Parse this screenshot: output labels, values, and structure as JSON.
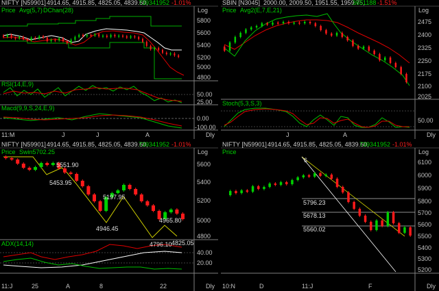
{
  "colors": {
    "bg": "#000000",
    "green": "#00c000",
    "red": "#e00000",
    "white": "#ffffff",
    "grid": "#808080",
    "yellow": "#c0c000",
    "text_green": "#00d000",
    "text_red": "#ff2020",
    "label": "#c0c0c0"
  },
  "panels": {
    "tl": {
      "header": {
        "symbol": "NIFTY [N59901]",
        "ohlc": "4914.65, 4915.85, 4825.05, 4839.60,",
        "volume": "739341952",
        "change": "-1.01%",
        "scale": "Log"
      },
      "indicator_labels": [
        "Price",
        "Avg(5,7)",
        "DChan(28)"
      ],
      "price_ticks": [
        "5800",
        "5600",
        "5400",
        "5200",
        "5000",
        "4800"
      ],
      "rsi": {
        "label": "RSI(14,E,9)",
        "ticks": [
          "50.00",
          "25.00"
        ]
      },
      "macd": {
        "label": "Macd(9,9,S,24,E,9)",
        "ticks": [
          "0.00",
          "-100.00"
        ]
      },
      "date_axis": [
        "11:M",
        "J",
        "J",
        "A"
      ],
      "period": "Dly"
    },
    "tr": {
      "header": {
        "symbol": "SBIN [N3045]",
        "ohlc": "2000.00, 2009.50, 1951.55, 1959.75,",
        "volume": "3651188",
        "change": "-1.51%",
        "scale": "Log"
      },
      "indicator_labels": [
        "Price",
        "Avg2(E,7,E,21)"
      ],
      "price_ticks": [
        "2475",
        "2400",
        "2325",
        "2250",
        "2175",
        "2100",
        "2025"
      ],
      "stoch": {
        "label": "Stoch(5,3,S,3)",
        "ticks": [
          "50.00"
        ]
      },
      "date_axis": [
        "J",
        "A"
      ],
      "period": "Dly"
    },
    "bl": {
      "header": {
        "symbol": "NIFTY [N59901]",
        "ohlc": "4914.65, 4915.85, 4825.05, 4839.60,",
        "volume": "739341952",
        "change": "-1.01%",
        "scale": "Log"
      },
      "indicator_labels": [
        "Price",
        "Swin5702.25"
      ],
      "swing_labels": [
        "5551.90",
        "5453.95",
        "5197.95",
        "4946.45",
        "4965.80",
        "4796.10",
        "4825.05"
      ],
      "price_ticks": [
        "5600",
        "5400",
        "5200",
        "5000",
        "4800"
      ],
      "adx": {
        "label": "ADX(14,14)",
        "ticks": [
          "40.00",
          "20.00"
        ]
      },
      "date_axis": [
        "11:J",
        "25",
        "A",
        "8",
        "22"
      ],
      "period": "Dly"
    },
    "br": {
      "header": {
        "symbol": "NIFTY [N59901]",
        "ohlc": "4914.65, 4915.85, 4825.05, 4839.60,",
        "volume": "739341952",
        "change": "-1.01%",
        "scale": "Log"
      },
      "indicator_labels": [
        "Price"
      ],
      "level_labels": [
        "5796.23",
        "5678.13",
        "5560.02",
        "6"
      ],
      "price_ticks": [
        "6100",
        "6000",
        "5900",
        "5800",
        "5700",
        "5600",
        "5500",
        "5400",
        "5300",
        "5200"
      ],
      "date_axis": [
        "10:N",
        "D",
        "11:J",
        "F"
      ],
      "period": "Dly"
    }
  }
}
